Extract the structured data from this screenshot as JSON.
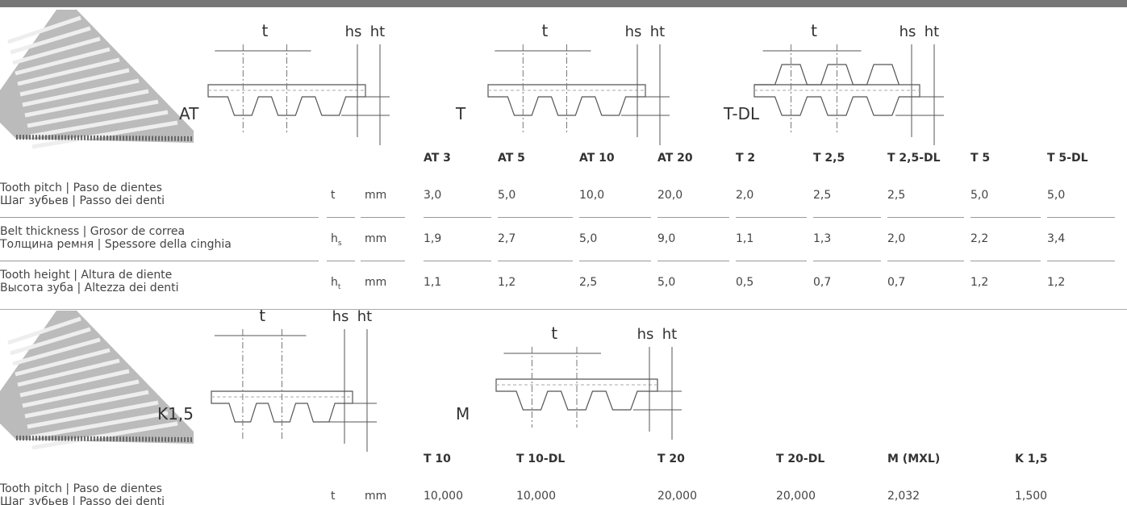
{
  "sections": [
    {
      "diagrams": [
        {
          "profile": "AT",
          "pitch": "t",
          "thickness": "hs",
          "height": "ht"
        },
        {
          "profile": "T",
          "pitch": "t",
          "thickness": "hs",
          "height": "ht"
        },
        {
          "profile": "T-DL",
          "pitch": "t",
          "thickness": "hs",
          "height": "ht"
        }
      ],
      "table": {
        "columns": [
          "AT 3",
          "AT 5",
          "AT 10",
          "AT 20",
          "T 2",
          "T 2,5",
          "T 2,5-DL",
          "T 5",
          "T 5-DL"
        ],
        "rows": [
          {
            "label": [
              "Tooth pitch | Paso de dientes",
              "Шаг зубьев | Passo dei denti"
            ],
            "symbol": "t",
            "unit": "mm",
            "values": [
              "3,0",
              "5,0",
              "10,0",
              "20,0",
              "2,0",
              "2,5",
              "2,5",
              "5,0",
              "5,0"
            ]
          },
          {
            "label": [
              "Belt thickness | Grosor de correa",
              "Толщина ремня | Spessore della cinghia"
            ],
            "symbol": "h",
            "symbol_sub": "s",
            "unit": "mm",
            "values": [
              "1,9",
              "2,7",
              "5,0",
              "9,0",
              "1,1",
              "1,3",
              "2,0",
              "2,2",
              "3,4"
            ]
          },
          {
            "label": [
              "Tooth height | Altura de diente",
              "Высота зуба | Altezza dei denti"
            ],
            "symbol": "h",
            "symbol_sub": "t",
            "unit": "mm",
            "values": [
              "1,1",
              "1,2",
              "2,5",
              "5,0",
              "0,5",
              "0,7",
              "0,7",
              "1,2",
              "1,2"
            ]
          }
        ]
      }
    },
    {
      "diagrams": [
        {
          "profile": "K1,5",
          "pitch": "t",
          "thickness": "hs",
          "height": "ht"
        },
        {
          "profile": "M",
          "pitch": "t",
          "thickness": "hs",
          "height": "ht"
        }
      ],
      "table": {
        "columns": [
          "T 10",
          "T 10-DL",
          "T 20",
          "T 20-DL",
          "M (MXL)",
          "K 1,5"
        ],
        "rows": [
          {
            "label": [
              "Tooth pitch | Paso de dientes",
              "Шаг зубьев | Passo dei denti"
            ],
            "symbol": "t",
            "unit": "mm",
            "values": [
              "10,000",
              "10,000",
              "20,000",
              "20,000",
              "2,032",
              "1,500"
            ]
          }
        ]
      }
    }
  ]
}
